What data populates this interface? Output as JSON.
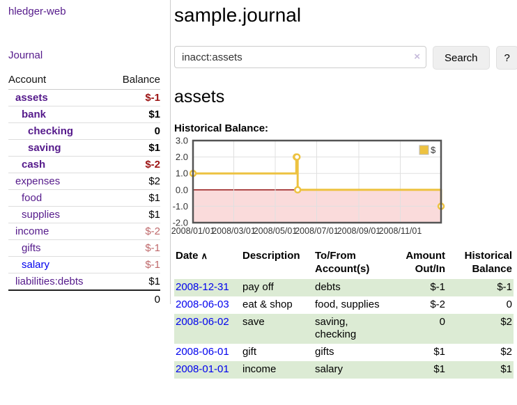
{
  "sidebar": {
    "app_title": "hledger-web",
    "nav_journal": "Journal",
    "accounts": {
      "col_account": "Account",
      "col_balance": "Balance",
      "rows": [
        {
          "name": "assets",
          "depth": 1,
          "bold": true,
          "name_color": "purple",
          "balance": "$-1",
          "balance_color": "neg-strong"
        },
        {
          "name": "bank",
          "depth": 2,
          "bold": true,
          "name_color": "purple",
          "balance": "$1",
          "balance_color": "black"
        },
        {
          "name": "checking",
          "depth": 3,
          "bold": true,
          "name_color": "purple",
          "balance": "0",
          "balance_color": "black"
        },
        {
          "name": "saving",
          "depth": 3,
          "bold": true,
          "name_color": "purple",
          "balance": "$1",
          "balance_color": "black"
        },
        {
          "name": "cash",
          "depth": 2,
          "bold": true,
          "name_color": "purple",
          "balance": "$-2",
          "balance_color": "neg-strong"
        },
        {
          "name": "expenses",
          "depth": 1,
          "bold": false,
          "name_color": "purple",
          "balance": "$2",
          "balance_color": "black"
        },
        {
          "name": "food",
          "depth": 2,
          "bold": false,
          "name_color": "purple",
          "balance": "$1",
          "balance_color": "black"
        },
        {
          "name": "supplies",
          "depth": 2,
          "bold": false,
          "name_color": "purple",
          "balance": "$1",
          "balance_color": "black"
        },
        {
          "name": "income",
          "depth": 1,
          "bold": false,
          "name_color": "purple",
          "balance": "$-2",
          "balance_color": "neg-faded"
        },
        {
          "name": "gifts",
          "depth": 2,
          "bold": false,
          "name_color": "purple",
          "balance": "$-1",
          "balance_color": "neg-faded"
        },
        {
          "name": "salary",
          "depth": 2,
          "bold": false,
          "name_color": "blue",
          "balance": "$-1",
          "balance_color": "neg-faded"
        },
        {
          "name": "liabilities:debts",
          "depth": 1,
          "bold": false,
          "name_color": "purple",
          "balance": "$1",
          "balance_color": "black"
        }
      ],
      "total": "0"
    }
  },
  "main": {
    "title": "sample.journal",
    "search": {
      "value": "inacct:assets",
      "clear_icon": "×",
      "search_button": "Search",
      "help_button": "?"
    },
    "account_heading": "assets",
    "chart_label": "Historical Balance:"
  },
  "chart_data": {
    "type": "line",
    "step": true,
    "title": "Historical Balance",
    "series": [
      {
        "name": "$",
        "color": "#edc240",
        "points": [
          [
            "2008-01-01",
            1
          ],
          [
            "2008-06-01",
            2
          ],
          [
            "2008-06-02",
            2
          ],
          [
            "2008-06-03",
            0
          ],
          [
            "2008-12-31",
            -1
          ]
        ]
      }
    ],
    "x_range": [
      "2008-01-01",
      "2008-12-31"
    ],
    "y_range": [
      -2,
      3
    ],
    "y_ticks": [
      {
        "v": 3,
        "label": "3.0"
      },
      {
        "v": 2,
        "label": "2.0"
      },
      {
        "v": 1,
        "label": "1.0"
      },
      {
        "v": 0,
        "label": "0.0"
      },
      {
        "v": -1,
        "label": "-1.0"
      },
      {
        "v": -2,
        "label": "-2.0"
      }
    ],
    "x_ticks": [
      {
        "d": "2008-01-01",
        "label": "2008/01/01"
      },
      {
        "d": "2008-03-01",
        "label": "2008/03/01"
      },
      {
        "d": "2008-05-01",
        "label": "2008/05/01"
      },
      {
        "d": "2008-07-01",
        "label": "2008/07/01"
      },
      {
        "d": "2008-09-01",
        "label": "2008/09/01"
      },
      {
        "d": "2008-11-01",
        "label": "2008/11/01"
      }
    ],
    "grid": true,
    "legend_position": "top-right",
    "colors": {
      "grid": "#e0e0e0",
      "zero_line": "#8b0000",
      "negative_region": "#fadbdb",
      "border": "#545454",
      "marker_fill": "#ffffff",
      "tick_text": "#333333"
    }
  },
  "register": {
    "headers": {
      "date": "Date",
      "sort_icon": "∧",
      "description": "Description",
      "accounts_line1": "To/From",
      "accounts_line2": "Account(s)",
      "amount_line1": "Amount",
      "amount_line2": "Out/In",
      "balance_line1": "Historical",
      "balance_line2": "Balance"
    },
    "rows": [
      {
        "date": "2008-12-31",
        "description": "pay off",
        "accounts": "debts",
        "amount": "$-1",
        "amount_color": "neg",
        "balance": "$-1",
        "balance_color": "neg",
        "striped": true
      },
      {
        "date": "2008-06-03",
        "description": "eat & shop",
        "accounts": "food, supplies",
        "amount": "$-2",
        "amount_color": "neg",
        "balance": "0",
        "balance_color": "black",
        "striped": false
      },
      {
        "date": "2008-06-02",
        "description": "save",
        "accounts": "saving, checking",
        "amount": "0",
        "amount_color": "black",
        "balance": "$2",
        "balance_color": "black",
        "striped": true
      },
      {
        "date": "2008-06-01",
        "description": "gift",
        "accounts": "gifts",
        "amount": "$1",
        "amount_color": "black",
        "balance": "$2",
        "balance_color": "black",
        "striped": false
      },
      {
        "date": "2008-01-01",
        "description": "income",
        "accounts": "salary",
        "amount": "$1",
        "amount_color": "black",
        "balance": "$1",
        "balance_color": "black",
        "striped": true
      }
    ]
  }
}
